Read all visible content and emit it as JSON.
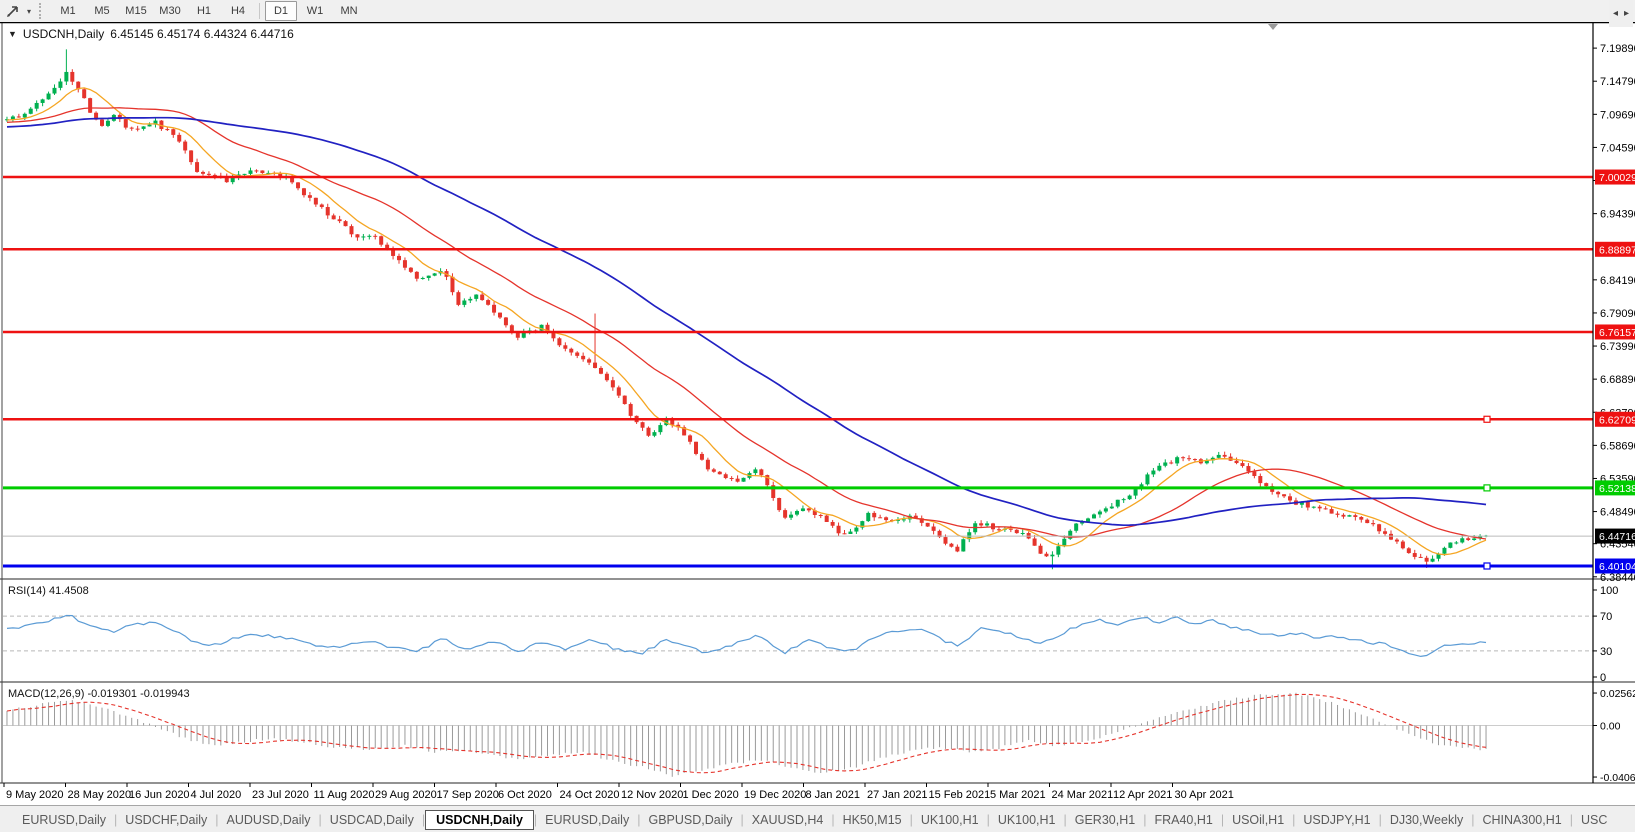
{
  "toolbar": {
    "pointer_tool": "cursor-pointer",
    "caret": "▾",
    "timeframes": [
      "M1",
      "M5",
      "M15",
      "M30",
      "H1",
      "H4",
      "D1",
      "W1",
      "MN"
    ],
    "active_timeframe": "D1",
    "group_break_after": "H4"
  },
  "window": {
    "title_symbol": "USDCNH,Daily",
    "title_ohlc": "6.45145 6.45174 6.44324 6.44716",
    "collapse_triangle": "▼"
  },
  "chart_data": {
    "type": "candlestick",
    "symbol": "USDCNH",
    "timeframe": "Daily",
    "current_ohlc": {
      "open": "6.45145",
      "high": "6.45174",
      "low": "6.44324",
      "close": "6.44716"
    },
    "ylim": [
      6.3729,
      7.2102
    ],
    "price_axis_ticks": [
      {
        "label": "7.19890",
        "value": 7.1989
      },
      {
        "label": "7.14790",
        "value": 7.1479
      },
      {
        "label": "7.09690",
        "value": 7.0969
      },
      {
        "label": "7.04590",
        "value": 7.0459
      },
      {
        "label": "6.99490",
        "value": 6.9949
      },
      {
        "label": "6.94390",
        "value": 6.9439
      },
      {
        "label": "6.84190",
        "value": 6.8419
      },
      {
        "label": "6.79090",
        "value": 6.7909
      },
      {
        "label": "6.73990",
        "value": 6.7399
      },
      {
        "label": "6.68890",
        "value": 6.6889
      },
      {
        "label": "6.63790",
        "value": 6.6379
      },
      {
        "label": "6.58690",
        "value": 6.5869
      },
      {
        "label": "6.53590",
        "value": 6.5359
      },
      {
        "label": "6.48490",
        "value": 6.4849
      },
      {
        "label": "6.43540",
        "value": 6.4354
      },
      {
        "label": "6.38440",
        "value": 6.3844
      }
    ],
    "hlines": [
      {
        "label": "7.00029",
        "value": 7.00029,
        "color": "#ee1111",
        "width": 2.5,
        "handle": false
      },
      {
        "label": "6.88897",
        "value": 6.88897,
        "color": "#ee1111",
        "width": 2.5,
        "handle": false
      },
      {
        "label": "6.76157",
        "value": 6.76157,
        "color": "#ee1111",
        "width": 2.5,
        "handle": false
      },
      {
        "label": "6.62709",
        "value": 6.62709,
        "color": "#ee1111",
        "width": 2.5,
        "handle": true
      },
      {
        "label": "6.52138",
        "value": 6.52138,
        "color": "#00cc00",
        "width": 3,
        "handle": true
      },
      {
        "label": "6.40104",
        "value": 6.40104,
        "color": "#0000ee",
        "width": 3,
        "handle": true
      }
    ],
    "current_price": {
      "label": "6.44716",
      "value": 6.44716,
      "badge_color": "#000000",
      "line_color": "#bbbbbb"
    },
    "date_labels": [
      "9 May 2020",
      "28 May 2020",
      "16 Jun 2020",
      "4 Jul 2020",
      "23 Jul 2020",
      "11 Aug 2020",
      "29 Aug 2020",
      "17 Sep 2020",
      "6 Oct 2020",
      "24 Oct 2020",
      "12 Nov 2020",
      "1 Dec 2020",
      "19 Dec 2020",
      "8 Jan 2021",
      "27 Jan 2021",
      "15 Feb 2021",
      "5 Mar 2021",
      "24 Mar 2021",
      "12 Apr 2021",
      "30 Apr 2021"
    ],
    "bars": 250,
    "close_path_anchors": [
      [
        0.0,
        7.09
      ],
      [
        0.015,
        7.1
      ],
      [
        0.03,
        7.135
      ],
      [
        0.04,
        7.16
      ],
      [
        0.044,
        7.15
      ],
      [
        0.052,
        7.12
      ],
      [
        0.063,
        7.075
      ],
      [
        0.073,
        7.095
      ],
      [
        0.085,
        7.07
      ],
      [
        0.1,
        7.085
      ],
      [
        0.115,
        7.06
      ],
      [
        0.13,
        7.005
      ],
      [
        0.148,
        6.995
      ],
      [
        0.165,
        7.01
      ],
      [
        0.188,
        7.0
      ],
      [
        0.205,
        6.965
      ],
      [
        0.222,
        6.935
      ],
      [
        0.238,
        6.905
      ],
      [
        0.247,
        6.915
      ],
      [
        0.262,
        6.875
      ],
      [
        0.278,
        6.845
      ],
      [
        0.295,
        6.86
      ],
      [
        0.305,
        6.805
      ],
      [
        0.318,
        6.82
      ],
      [
        0.335,
        6.78
      ],
      [
        0.345,
        6.755
      ],
      [
        0.362,
        6.77
      ],
      [
        0.375,
        6.735
      ],
      [
        0.392,
        6.72
      ],
      [
        0.408,
        6.68
      ],
      [
        0.425,
        6.625
      ],
      [
        0.435,
        6.6
      ],
      [
        0.445,
        6.63
      ],
      [
        0.458,
        6.605
      ],
      [
        0.472,
        6.555
      ],
      [
        0.492,
        6.53
      ],
      [
        0.508,
        6.55
      ],
      [
        0.525,
        6.475
      ],
      [
        0.542,
        6.49
      ],
      [
        0.558,
        6.462
      ],
      [
        0.568,
        6.445
      ],
      [
        0.582,
        6.48
      ],
      [
        0.598,
        6.47
      ],
      [
        0.615,
        6.478
      ],
      [
        0.63,
        6.445
      ],
      [
        0.642,
        6.425
      ],
      [
        0.655,
        6.468
      ],
      [
        0.672,
        6.458
      ],
      [
        0.688,
        6.448
      ],
      [
        0.702,
        6.412
      ],
      [
        0.712,
        6.432
      ],
      [
        0.725,
        6.47
      ],
      [
        0.742,
        6.488
      ],
      [
        0.758,
        6.51
      ],
      [
        0.775,
        6.548
      ],
      [
        0.792,
        6.568
      ],
      [
        0.808,
        6.562
      ],
      [
        0.822,
        6.572
      ],
      [
        0.836,
        6.552
      ],
      [
        0.852,
        6.52
      ],
      [
        0.868,
        6.5
      ],
      [
        0.885,
        6.492
      ],
      [
        0.902,
        6.48
      ],
      [
        0.918,
        6.47
      ],
      [
        0.932,
        6.452
      ],
      [
        0.948,
        6.422
      ],
      [
        0.962,
        6.405
      ],
      [
        0.976,
        6.438
      ],
      [
        1.0,
        6.447
      ]
    ],
    "spikes": [
      {
        "f": 0.397,
        "high": 6.79
      },
      {
        "f": 0.705,
        "low": 6.396
      },
      {
        "f": 0.04,
        "high": 7.197
      },
      {
        "f": 0.96,
        "low": 6.398
      }
    ],
    "moving_averages": [
      {
        "name": "MA fast",
        "window": 8,
        "color": "#f5a623",
        "width": 1.3
      },
      {
        "name": "MA mid",
        "window": 25,
        "color": "#e5342c",
        "width": 1.3
      },
      {
        "name": "MA slow",
        "window": 60,
        "color": "#2121c2",
        "width": 1.7
      }
    ],
    "shift_marker_x": 1273
  },
  "rsi": {
    "label": "RSI(14) 41.4508",
    "period": 14,
    "current": 41.4508,
    "scale_ticks": [
      {
        "label": "100",
        "value": 100
      },
      {
        "label": "70",
        "value": 70
      },
      {
        "label": "30",
        "value": 30
      },
      {
        "label": "0",
        "value": 0
      }
    ],
    "level_lines": [
      70,
      30
    ],
    "color": "#5b9bd5",
    "anchors": [
      [
        0.0,
        55
      ],
      [
        0.02,
        62
      ],
      [
        0.035,
        68
      ],
      [
        0.043,
        72
      ],
      [
        0.055,
        58
      ],
      [
        0.07,
        52
      ],
      [
        0.085,
        60
      ],
      [
        0.1,
        63
      ],
      [
        0.112,
        55
      ],
      [
        0.125,
        42
      ],
      [
        0.135,
        34
      ],
      [
        0.15,
        42
      ],
      [
        0.165,
        50
      ],
      [
        0.185,
        46
      ],
      [
        0.205,
        38
      ],
      [
        0.225,
        35
      ],
      [
        0.245,
        42
      ],
      [
        0.262,
        33
      ],
      [
        0.278,
        30
      ],
      [
        0.295,
        45
      ],
      [
        0.31,
        32
      ],
      [
        0.33,
        42
      ],
      [
        0.345,
        28
      ],
      [
        0.362,
        40
      ],
      [
        0.378,
        31
      ],
      [
        0.395,
        44
      ],
      [
        0.41,
        33
      ],
      [
        0.428,
        26
      ],
      [
        0.445,
        43
      ],
      [
        0.46,
        34
      ],
      [
        0.475,
        27
      ],
      [
        0.492,
        38
      ],
      [
        0.508,
        47
      ],
      [
        0.525,
        28
      ],
      [
        0.542,
        41
      ],
      [
        0.558,
        33
      ],
      [
        0.572,
        30
      ],
      [
        0.588,
        48
      ],
      [
        0.605,
        52
      ],
      [
        0.62,
        55
      ],
      [
        0.632,
        42
      ],
      [
        0.645,
        36
      ],
      [
        0.658,
        55
      ],
      [
        0.672,
        52
      ],
      [
        0.688,
        45
      ],
      [
        0.7,
        38
      ],
      [
        0.712,
        48
      ],
      [
        0.725,
        60
      ],
      [
        0.74,
        65
      ],
      [
        0.752,
        58
      ],
      [
        0.765,
        70
      ],
      [
        0.778,
        63
      ],
      [
        0.79,
        68
      ],
      [
        0.8,
        60
      ],
      [
        0.815,
        66
      ],
      [
        0.828,
        58
      ],
      [
        0.842,
        52
      ],
      [
        0.858,
        48
      ],
      [
        0.872,
        50
      ],
      [
        0.888,
        45
      ],
      [
        0.902,
        47
      ],
      [
        0.915,
        42
      ],
      [
        0.93,
        38
      ],
      [
        0.945,
        30
      ],
      [
        0.958,
        24
      ],
      [
        0.972,
        36
      ],
      [
        1.0,
        41.45
      ]
    ]
  },
  "macd": {
    "label": "MACD(12,26,9) -0.019301 -0.019943",
    "current_macd": -0.019301,
    "current_signal": -0.019943,
    "scale_ticks": [
      {
        "label": "0.025623",
        "value": 0.025623
      },
      {
        "label": "0.00",
        "value": 0.0
      },
      {
        "label": "-0.04068",
        "value": -0.04068
      }
    ],
    "hist_color": "#9a9a9a",
    "signal_color": "#e5342c",
    "anchors": [
      [
        0.0,
        0.012
      ],
      [
        0.02,
        0.016
      ],
      [
        0.04,
        0.02
      ],
      [
        0.06,
        0.016
      ],
      [
        0.08,
        0.008
      ],
      [
        0.1,
        0.0
      ],
      [
        0.12,
        -0.01
      ],
      [
        0.14,
        -0.016
      ],
      [
        0.16,
        -0.013
      ],
      [
        0.18,
        -0.01
      ],
      [
        0.2,
        -0.013
      ],
      [
        0.22,
        -0.017
      ],
      [
        0.25,
        -0.019
      ],
      [
        0.27,
        -0.016
      ],
      [
        0.29,
        -0.021
      ],
      [
        0.31,
        -0.019
      ],
      [
        0.33,
        -0.024
      ],
      [
        0.35,
        -0.027
      ],
      [
        0.37,
        -0.023
      ],
      [
        0.39,
        -0.021
      ],
      [
        0.41,
        -0.028
      ],
      [
        0.43,
        -0.033
      ],
      [
        0.45,
        -0.0395
      ],
      [
        0.47,
        -0.036
      ],
      [
        0.49,
        -0.03
      ],
      [
        0.51,
        -0.027
      ],
      [
        0.53,
        -0.033
      ],
      [
        0.55,
        -0.0375
      ],
      [
        0.57,
        -0.034
      ],
      [
        0.59,
        -0.026
      ],
      [
        0.61,
        -0.02
      ],
      [
        0.63,
        -0.017
      ],
      [
        0.65,
        -0.021
      ],
      [
        0.67,
        -0.018
      ],
      [
        0.69,
        -0.012
      ],
      [
        0.71,
        -0.016
      ],
      [
        0.73,
        -0.012
      ],
      [
        0.75,
        -0.006
      ],
      [
        0.77,
        0.002
      ],
      [
        0.79,
        0.01
      ],
      [
        0.81,
        0.016
      ],
      [
        0.83,
        0.021
      ],
      [
        0.85,
        0.0245
      ],
      [
        0.87,
        0.0256
      ],
      [
        0.89,
        0.02
      ],
      [
        0.91,
        0.012
      ],
      [
        0.93,
        0.002
      ],
      [
        0.95,
        -0.008
      ],
      [
        0.97,
        -0.016
      ],
      [
        1.0,
        -0.0193
      ]
    ]
  },
  "tabs": {
    "items": [
      "EURUSD,Daily",
      "USDCHF,Daily",
      "AUDUSD,Daily",
      "USDCAD,Daily",
      "USDCNH,Daily",
      "EURUSD,Daily",
      "GBPUSD,Daily",
      "XAUUSD,H4",
      "HK50,M15",
      "UK100,H1",
      "UK100,H1",
      "GER30,H1",
      "FRA40,H1",
      "USOil,H1",
      "USDJPY,H1",
      "DJ30,Weekly",
      "CHINA300,H1",
      "USC"
    ],
    "active_index": 4,
    "scroll_left": "◂",
    "scroll_right": "▸"
  },
  "colors": {
    "up_candle": "#00b050",
    "down_candle": "#e5342c",
    "axis_text": "#000000",
    "grid_dashed": "#b8b8b8",
    "panel_border": "#6f6f6f",
    "badge_text": "#ffffff"
  }
}
